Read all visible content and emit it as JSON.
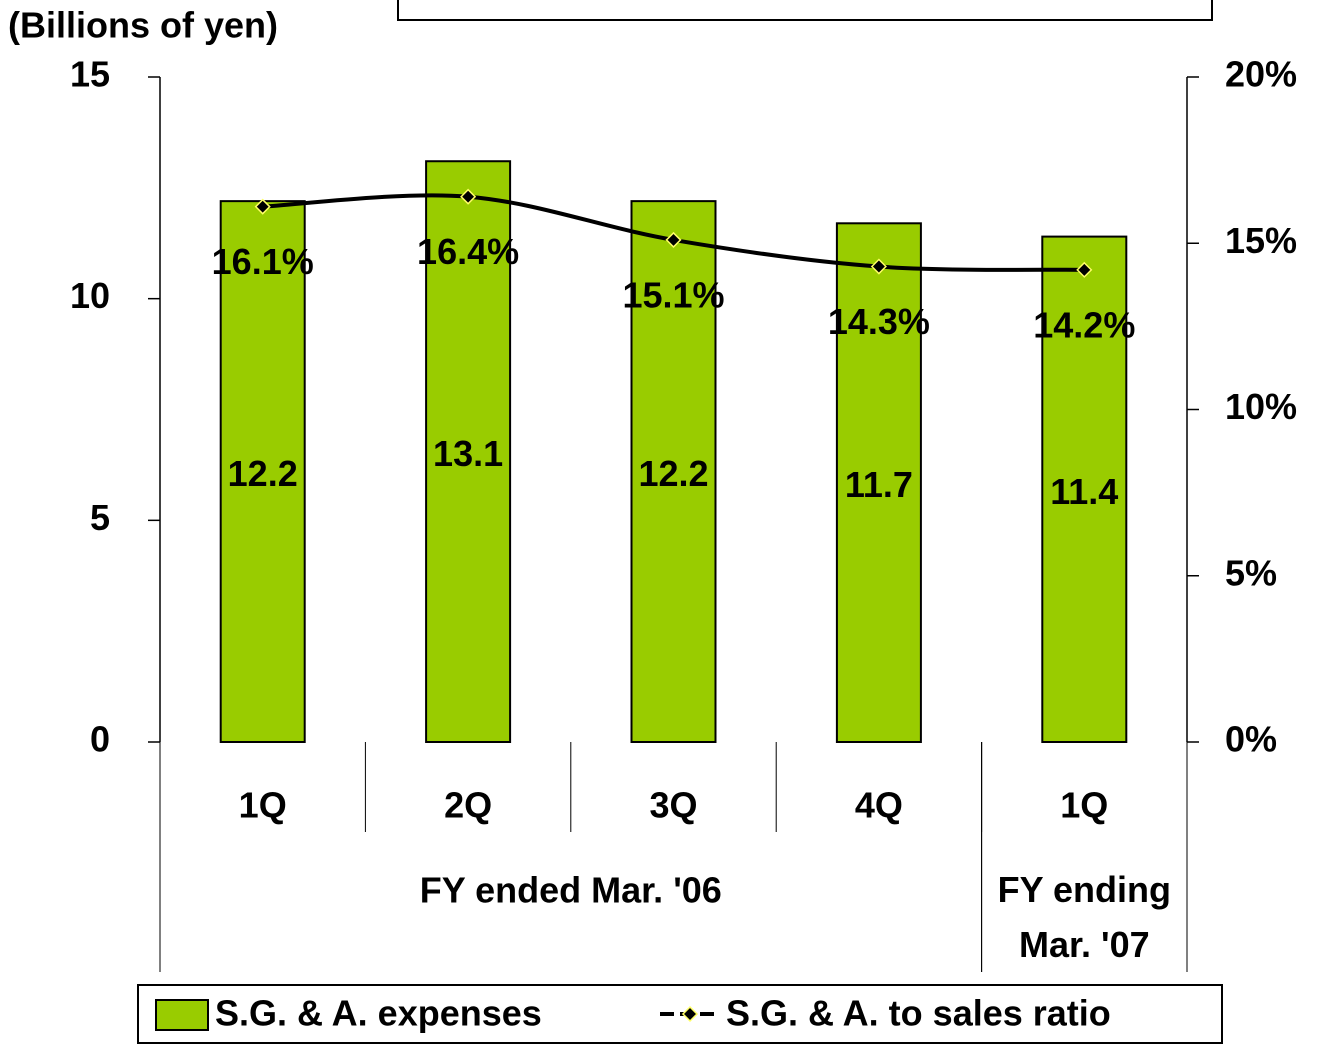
{
  "chart_data": {
    "type": "bar_line",
    "y_axis_label": "(Billions of yen)",
    "categories": [
      "1Q",
      "2Q",
      "3Q",
      "4Q",
      "1Q"
    ],
    "category_groups": [
      {
        "lines": [
          "FY ended Mar. '06"
        ],
        "span": 4
      },
      {
        "lines": [
          "FY ending",
          "Mar. '07"
        ],
        "span": 1
      }
    ],
    "series": [
      {
        "name": "S.G. & A. expenses",
        "type": "bar",
        "color": "#99cc00",
        "values": [
          12.2,
          13.1,
          12.2,
          11.7,
          11.4
        ]
      },
      {
        "name": "S.G. & A. to sales ratio",
        "type": "line",
        "axis": "y2",
        "color": "#000000",
        "marker_color": "#ffff66",
        "values": [
          16.1,
          16.4,
          15.1,
          14.3,
          14.2
        ],
        "value_labels": [
          "16.1%",
          "16.4%",
          "15.1%",
          "14.3%",
          "14.2%"
        ]
      }
    ],
    "ylim": [
      0,
      15
    ],
    "yticks": [
      0,
      5,
      10,
      15
    ],
    "y2lim": [
      0,
      20
    ],
    "y2ticks": [
      {
        "value": 0,
        "label": "0%"
      },
      {
        "value": 5,
        "label": "5%"
      },
      {
        "value": 10,
        "label": "10%"
      },
      {
        "value": 15,
        "label": "15%"
      },
      {
        "value": 20,
        "label": "20%"
      }
    ]
  }
}
